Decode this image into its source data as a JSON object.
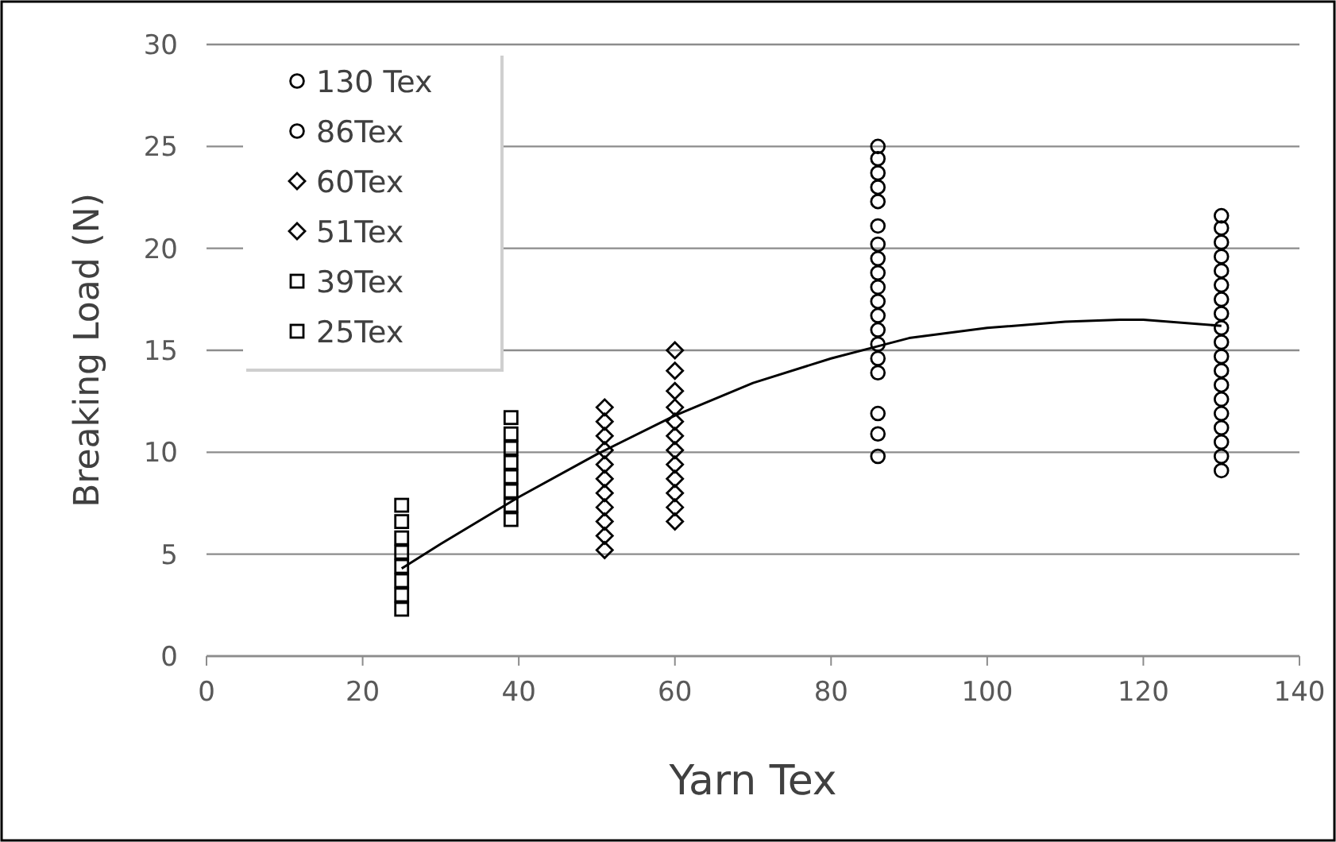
{
  "chart_data": {
    "type": "scatter",
    "xlabel": "Yarn Tex",
    "ylabel": "Breaking Load (N)",
    "xlim": [
      0,
      140
    ],
    "ylim": [
      0,
      30
    ],
    "xticks": [
      0,
      20,
      40,
      60,
      80,
      100,
      120,
      140
    ],
    "yticks": [
      0,
      5,
      10,
      15,
      20,
      25,
      30
    ],
    "grid": "y",
    "legend": "top left",
    "series": [
      {
        "name": "130 Tex",
        "color": "#000000",
        "marker": "circle",
        "x": [
          130,
          130,
          130,
          130,
          130,
          130,
          130,
          130,
          130,
          130,
          130,
          130,
          130,
          130,
          130,
          130,
          130,
          130,
          130
        ],
        "values": [
          9.1,
          9.8,
          10.5,
          11.2,
          11.9,
          12.6,
          13.3,
          14.0,
          14.7,
          15.4,
          16.1,
          16.8,
          17.5,
          18.2,
          18.9,
          19.6,
          20.3,
          21.0,
          21.6
        ]
      },
      {
        "name": "86Tex",
        "color": "#000000",
        "marker": "circle",
        "x": [
          86,
          86,
          86,
          86,
          86,
          86,
          86,
          86,
          86,
          86,
          86,
          86,
          86,
          86,
          86,
          86,
          86,
          86,
          86
        ],
        "values": [
          9.8,
          10.9,
          11.9,
          13.9,
          14.6,
          15.3,
          16.0,
          16.7,
          17.4,
          18.1,
          18.8,
          19.5,
          20.2,
          21.1,
          22.3,
          23.0,
          23.7,
          24.4,
          25.0
        ]
      },
      {
        "name": "60Tex",
        "color": "#000000",
        "marker": "diamond",
        "x": [
          60,
          60,
          60,
          60,
          60,
          60,
          60,
          60,
          60,
          60,
          60,
          60
        ],
        "values": [
          6.6,
          7.3,
          8.0,
          8.7,
          9.4,
          10.1,
          10.8,
          11.5,
          12.2,
          13.0,
          14.0,
          15.0
        ]
      },
      {
        "name": "51Tex",
        "color": "#000000",
        "marker": "diamond",
        "x": [
          51,
          51,
          51,
          51,
          51,
          51,
          51,
          51,
          51,
          51,
          51
        ],
        "values": [
          5.2,
          5.9,
          6.6,
          7.3,
          8.0,
          8.7,
          9.4,
          10.1,
          10.8,
          11.5,
          12.2
        ]
      },
      {
        "name": "39Tex",
        "color": "#000000",
        "marker": "square",
        "x": [
          39,
          39,
          39,
          39,
          39,
          39,
          39,
          39
        ],
        "values": [
          6.7,
          7.4,
          8.1,
          8.8,
          9.5,
          10.2,
          10.9,
          11.7
        ]
      },
      {
        "name": "25Tex",
        "color": "#000000",
        "marker": "square",
        "x": [
          25,
          25,
          25,
          25,
          25,
          25,
          25,
          25
        ],
        "values": [
          2.3,
          3.0,
          3.7,
          4.4,
          5.1,
          5.8,
          6.6,
          7.4
        ]
      },
      {
        "type": "line",
        "color": "#000000",
        "marker": "none",
        "x": [
          25,
          30,
          40,
          50,
          60,
          70,
          80,
          86,
          90,
          100,
          110,
          117,
          120,
          130
        ],
        "values": [
          4.3,
          5.5,
          7.8,
          9.9,
          11.8,
          13.4,
          14.6,
          15.2,
          15.6,
          16.1,
          16.4,
          16.5,
          16.5,
          16.2
        ]
      }
    ]
  }
}
